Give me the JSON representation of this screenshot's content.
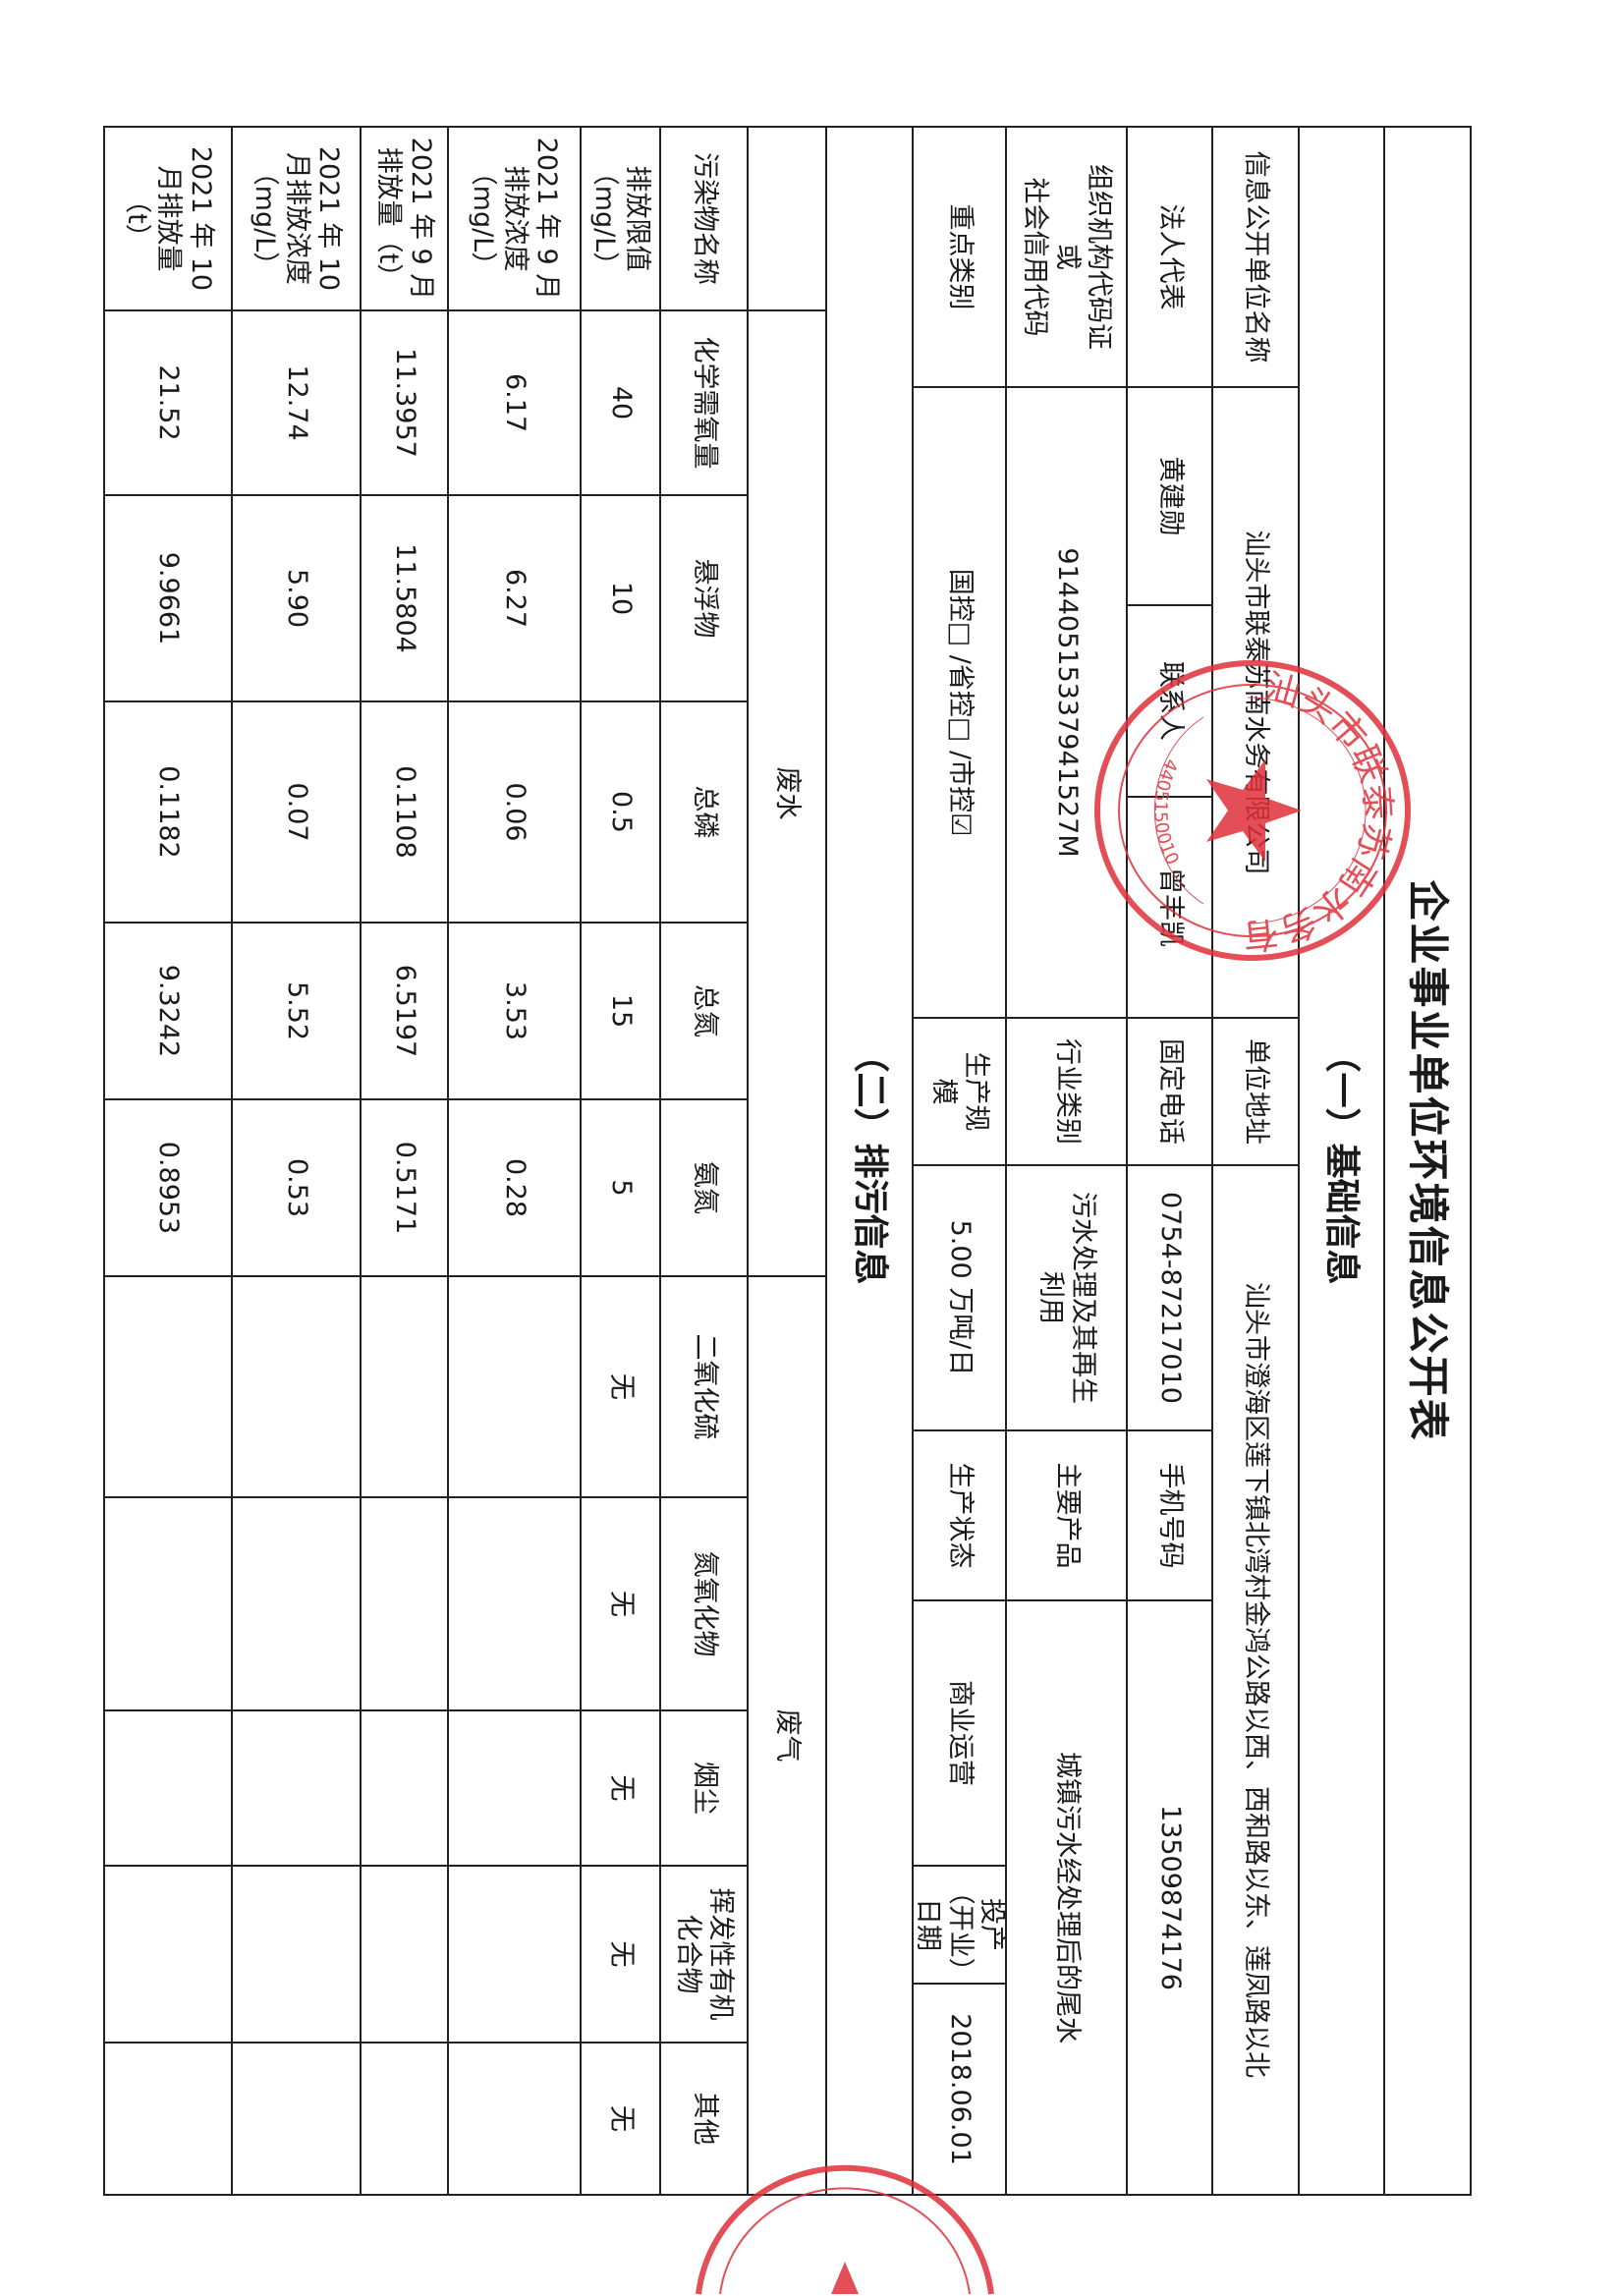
{
  "title": "企业事业单位环境信息公开表",
  "section1": "（一）基础信息",
  "basic": {
    "name_label": "信息公开单位名称",
    "name_value": "汕头市联泰苏南水务有限公司",
    "address_label": "单位地址",
    "address_value": "汕头市澄海区莲下镇北湾村金鸿公路以西、西和路以东、莲凤路以北",
    "legal_label": "法人代表",
    "legal_value": "黄建勋",
    "contact_label": "联系人",
    "contact_value": "曾丰凯",
    "phone_label": "固定电话",
    "phone_value": "0754-87217010",
    "mobile_label": "手机号码",
    "mobile_value": "13509874176",
    "code_label": "组织机构代码证\n或\n社会信用代码",
    "code_value": "91440515337941527M",
    "industry_label": "行业类别",
    "industry_value": "污水处理及其再生\n利用",
    "product_label": "主要产品",
    "product_value": "城镇污水经处理后的尾水",
    "key_label": "重点类别",
    "key_value": "国控□ /省控□ /市控☑",
    "scale_label": "生产规\n模",
    "scale_value": "5.00 万吨/日",
    "status_label": "生产状态",
    "status_value": "商业运营",
    "start_label": "投产\n（开业）日期",
    "start_value": "2018.06.01"
  },
  "section2": "（二）排污信息",
  "discharge": {
    "water_label": "废水",
    "gas_label": "废气",
    "row_labels": [
      "污染物名称",
      "排放限值\n（mg/L）",
      "2021 年 9 月\n排放浓度\n（mg/L）",
      "2021 年 9 月\n排放量（t）",
      "2021 年 10\n月排放浓度\n（mg/L）",
      "2021 年 10\n月排放量\n（t）"
    ],
    "columns": [
      {
        "name": "化学需氧量",
        "values": [
          "40",
          "6.17",
          "11.3957",
          "12.74",
          "21.52"
        ]
      },
      {
        "name": "悬浮物",
        "values": [
          "10",
          "6.27",
          "11.5804",
          "5.90",
          "9.9661"
        ]
      },
      {
        "name": "总磷",
        "values": [
          "0.5",
          "0.06",
          "0.1108",
          "0.07",
          "0.1182"
        ]
      },
      {
        "name": "总氮",
        "values": [
          "15",
          "3.53",
          "6.5197",
          "5.52",
          "9.3242"
        ]
      },
      {
        "name": "氨氮",
        "values": [
          "5",
          "0.28",
          "0.5171",
          "0.53",
          "0.8953"
        ]
      },
      {
        "name": "二氧化硫",
        "values": [
          "无",
          "",
          "",
          "",
          ""
        ]
      },
      {
        "name": "氮氧化物",
        "values": [
          "无",
          "",
          "",
          "",
          ""
        ]
      },
      {
        "name": "烟尘",
        "values": [
          "无",
          "",
          "",
          "",
          ""
        ]
      },
      {
        "name": "挥发性有机\n化合物",
        "values": [
          "无",
          "",
          "",
          "",
          ""
        ]
      },
      {
        "name": "其他",
        "values": [
          "无",
          "",
          "",
          "",
          ""
        ]
      }
    ]
  },
  "stamp": {
    "text": "汕头市联泰苏南水务有限公司",
    "code": "4405150010",
    "color": "#e0303a"
  }
}
